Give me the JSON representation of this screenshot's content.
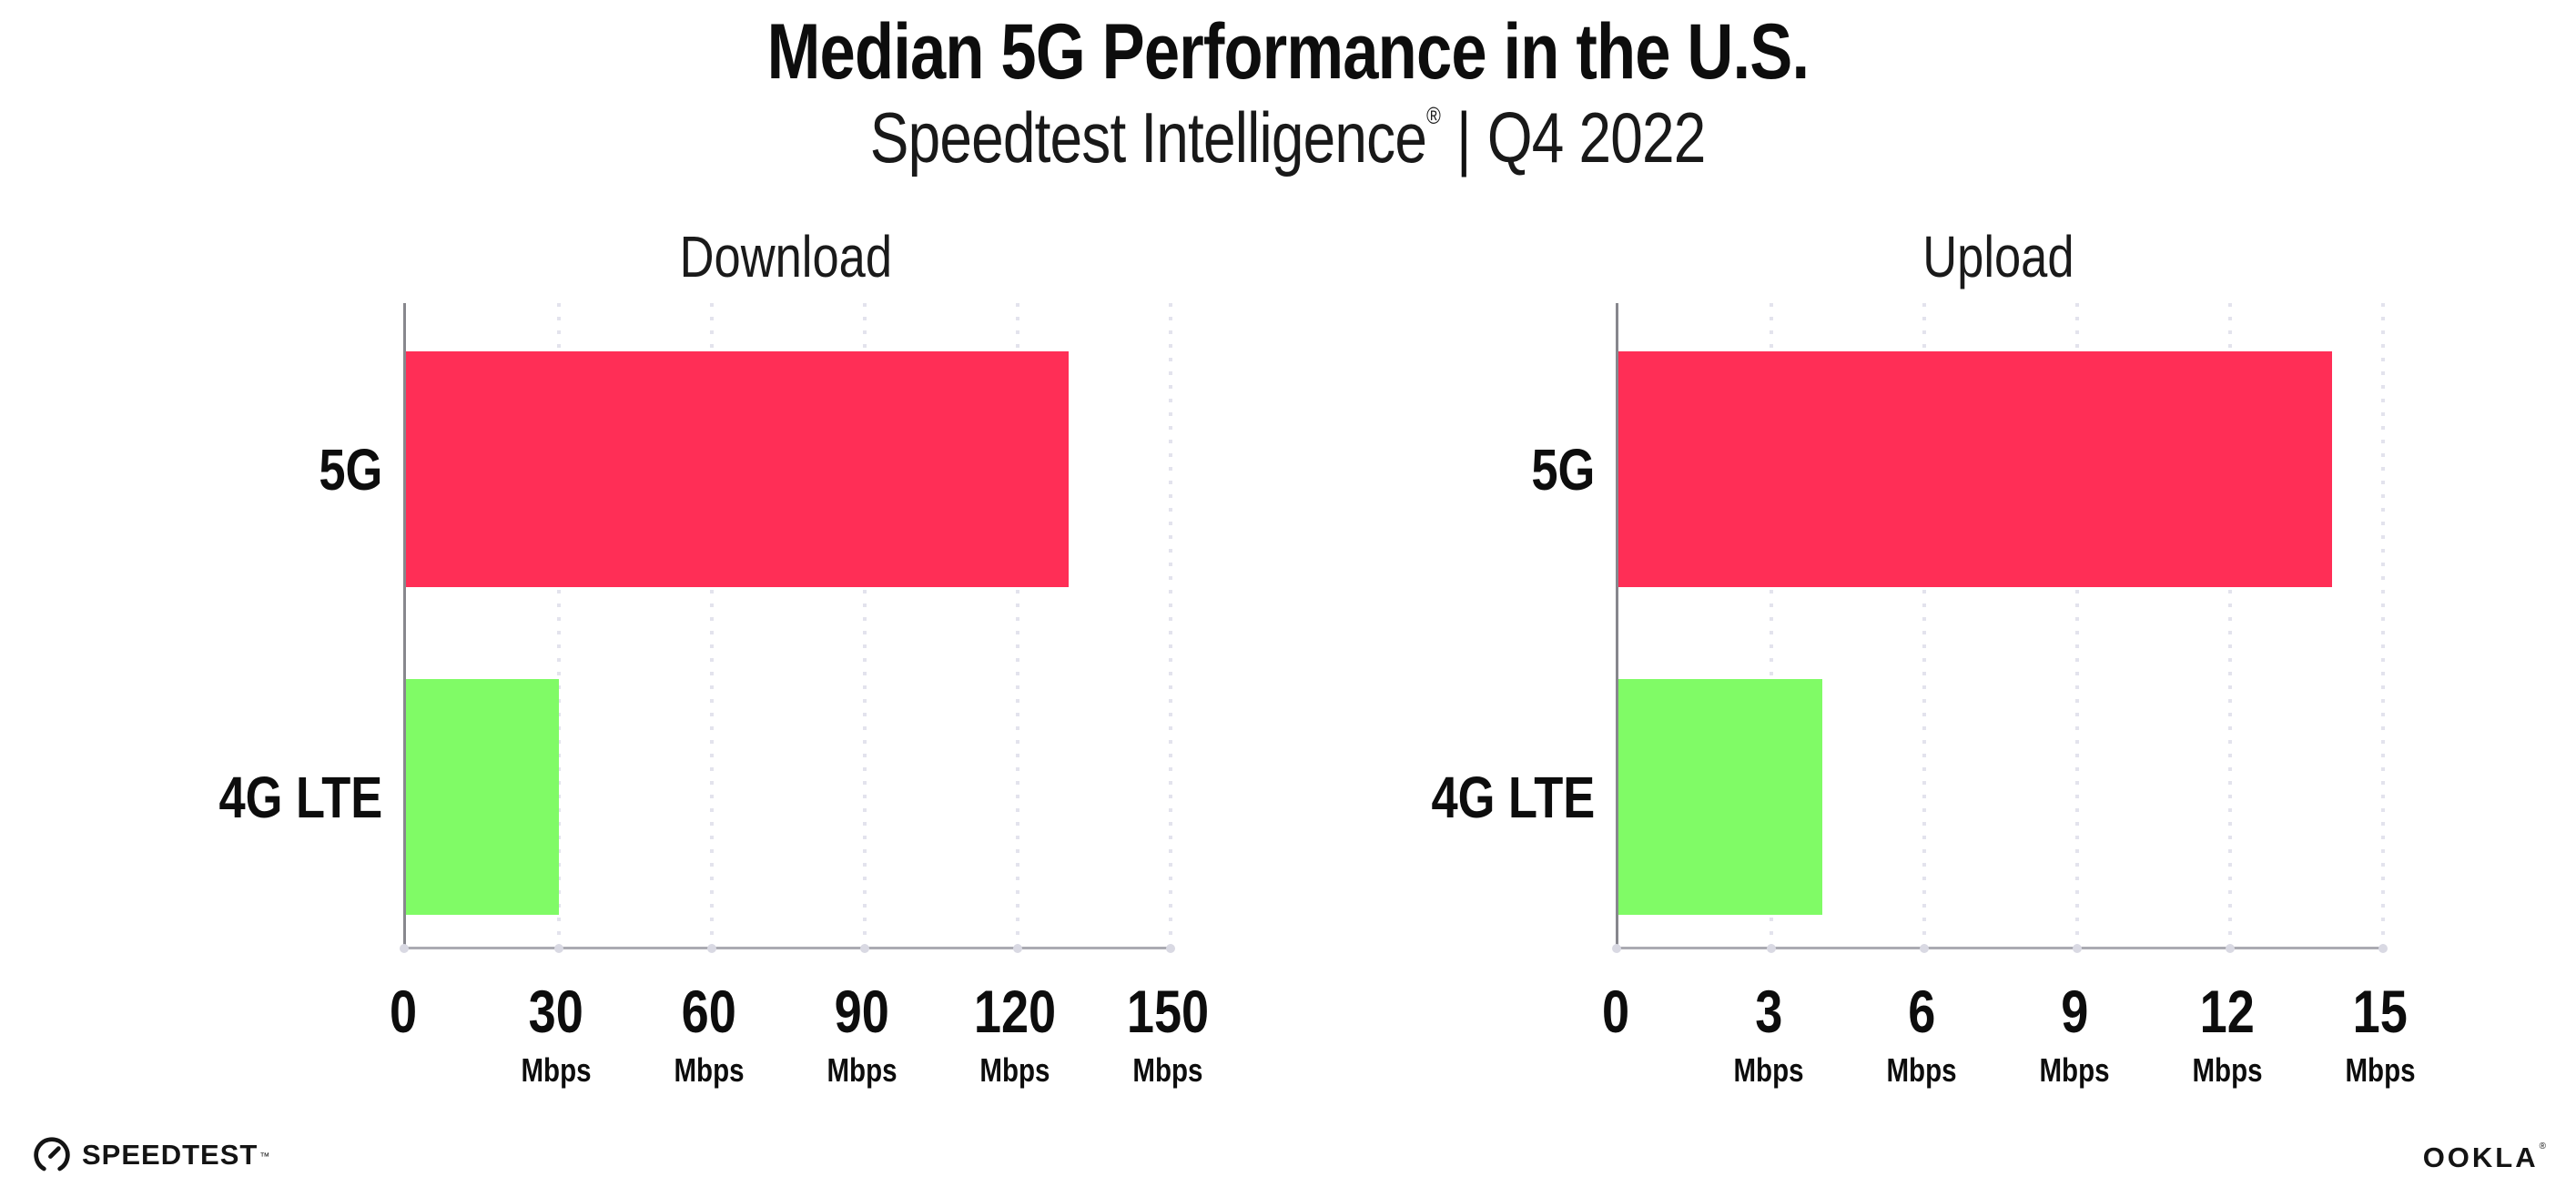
{
  "header": {
    "title": "Median 5G Performance in the U.S.",
    "subtitle_brand": "Speedtest Intelligence",
    "subtitle_reg_mark": "®",
    "subtitle_separator": "|",
    "subtitle_period": "Q4 2022"
  },
  "chart_data": [
    {
      "type": "bar",
      "orientation": "horizontal",
      "title": "Download",
      "categories": [
        "5G",
        "4G LTE"
      ],
      "values": [
        130,
        30
      ],
      "value_unit": "Mbps",
      "xlim": [
        0,
        150
      ],
      "xtick_values": [
        0,
        30,
        60,
        90,
        120,
        150
      ],
      "tick_labels": [
        {
          "num": "0",
          "unit": ""
        },
        {
          "num": "30",
          "unit": "Mbps"
        },
        {
          "num": "60",
          "unit": "Mbps"
        },
        {
          "num": "90",
          "unit": "Mbps"
        },
        {
          "num": "120",
          "unit": "Mbps"
        },
        {
          "num": "150",
          "unit": "Mbps"
        }
      ],
      "bar_colors": [
        "#FF2E56",
        "#80FB66"
      ],
      "grid": "vertical-dotted",
      "legend": "none",
      "values_note": "approximate, read from gridlines"
    },
    {
      "type": "bar",
      "orientation": "horizontal",
      "title": "Upload",
      "categories": [
        "5G",
        "4G LTE"
      ],
      "values": [
        14,
        4
      ],
      "value_unit": "Mbps",
      "xlim": [
        0,
        15
      ],
      "xtick_values": [
        0,
        3,
        6,
        9,
        12,
        15
      ],
      "tick_labels": [
        {
          "num": "0",
          "unit": ""
        },
        {
          "num": "3",
          "unit": "Mbps"
        },
        {
          "num": "6",
          "unit": "Mbps"
        },
        {
          "num": "9",
          "unit": "Mbps"
        },
        {
          "num": "12",
          "unit": "Mbps"
        },
        {
          "num": "15",
          "unit": "Mbps"
        }
      ],
      "bar_colors": [
        "#FF2E56",
        "#80FB66"
      ],
      "grid": "vertical-dotted",
      "legend": "none",
      "values_note": "approximate, read from gridlines"
    }
  ],
  "footer": {
    "speedtest_label": "SPEEDTEST",
    "speedtest_tm": "™",
    "ookla_label": "OOKLA",
    "ookla_reg": "®"
  }
}
